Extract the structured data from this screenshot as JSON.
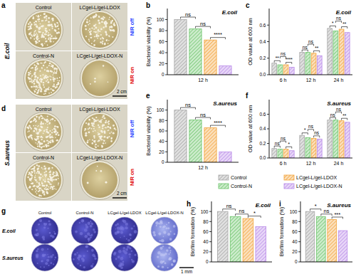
{
  "panel_labels": [
    "a",
    "b",
    "c",
    "d",
    "e",
    "f",
    "g",
    "h",
    "i"
  ],
  "shared_legend": [
    {
      "name": "Control",
      "color": "#a6a6a6"
    },
    {
      "name": "Control-N",
      "color": "#6cc46a"
    },
    {
      "name": "LCgel-L/gel-LDOX",
      "color": "#f2a33a"
    },
    {
      "name": "LCgel-L/gel-LDOX-N",
      "color": "#b98ae8"
    }
  ],
  "photo_panels": [
    {
      "species": "E.coil",
      "conditions": [
        {
          "state": "NIR off",
          "samples": [
            "Control",
            "LCgel-L/gel-LDOX"
          ]
        },
        {
          "state": "NIR on",
          "samples": [
            "Control-N",
            "LCgel-L/gel-LDOX-N"
          ]
        }
      ],
      "scale_bar": "2 cm"
    },
    {
      "species": "S.aureus",
      "conditions": [
        {
          "state": "NIR off",
          "samples": [
            "Control",
            "LCgel-L/gel-LDOX"
          ]
        },
        {
          "state": "NIR on",
          "samples": [
            "Control-N",
            "LCgel-L/gel-LDOX-N"
          ]
        }
      ],
      "scale_bar": "2 cm"
    }
  ],
  "biofilm_images": {
    "columns": [
      "Control",
      "Control-N",
      "LCgel-L/gel-LDOX",
      "LCgel-L/gel-LDOX-N"
    ],
    "rows": [
      "E.coil",
      "S.aureus"
    ],
    "scale_bar": "1 mm"
  },
  "chart_data": [
    {
      "type": "bar",
      "title": "E.coil",
      "y_label": "Bacterial viability (%)",
      "categories": [
        "12 h"
      ],
      "series": [
        {
          "values": [
            100
          ]
        },
        {
          "values": [
            83
          ]
        },
        {
          "values": [
            63
          ]
        },
        {
          "values": [
            16
          ]
        }
      ],
      "annotations": [
        [
          "ns",
          "ns",
          "****"
        ]
      ],
      "ylim": [
        0,
        120
      ],
      "yticks": [
        0,
        20,
        40,
        60,
        80,
        100
      ]
    },
    {
      "type": "bar",
      "title": "E.coil",
      "y_label": "OD value at 600 nm",
      "categories": [
        "6 h",
        "12 h",
        "24 h"
      ],
      "series": [
        {
          "values": [
            0.14,
            0.27,
            0.56
          ]
        },
        {
          "values": [
            0.12,
            0.27,
            0.53
          ]
        },
        {
          "values": [
            0.12,
            0.26,
            0.55
          ]
        },
        {
          "values": [
            0.09,
            0.23,
            0.51
          ]
        }
      ],
      "annotations": [
        [
          "**",
          "ns",
          "****"
        ],
        [
          "ns",
          "ns",
          "**"
        ],
        [
          "*",
          "ns",
          "**"
        ]
      ],
      "ylim": [
        0,
        0.8
      ],
      "yticks": [
        {
          "value": 0,
          "label": "0.0"
        },
        0.2,
        0.4,
        0.6
      ]
    },
    {
      "type": "bar",
      "title": "S.aureus",
      "y_label": "Bacterial viability (%)",
      "categories": [
        "12 h"
      ],
      "series": [
        {
          "values": [
            100
          ]
        },
        {
          "values": [
            81
          ]
        },
        {
          "values": [
            66
          ]
        },
        {
          "values": [
            20
          ]
        }
      ],
      "annotations": [
        [
          "ns",
          "ns",
          "****"
        ]
      ],
      "ylim": [
        0,
        120
      ],
      "yticks": [
        0,
        20,
        40,
        60,
        80,
        100
      ]
    },
    {
      "type": "bar",
      "title": "S.aureus",
      "y_label": "OD value at 600 nm",
      "categories": [
        "6 h",
        "12 h",
        "24 h"
      ],
      "series": [
        {
          "values": [
            0.13,
            0.31,
            0.52
          ]
        },
        {
          "values": [
            0.12,
            0.28,
            0.52
          ]
        },
        {
          "values": [
            0.12,
            0.27,
            0.51
          ]
        },
        {
          "values": [
            0.1,
            0.26,
            0.49
          ]
        }
      ],
      "annotations": [
        [
          "ns",
          "ns",
          "*"
        ],
        [
          "*",
          "ns",
          "ns"
        ],
        [
          "ns",
          "ns",
          "**"
        ]
      ],
      "ylim": [
        0,
        0.8
      ],
      "yticks": [
        {
          "value": 0,
          "label": "0.0"
        },
        0.2,
        0.4,
        0.6
      ]
    },
    {
      "type": "bar",
      "title": "E.coil",
      "y_label": "Biofilm formation (%)",
      "categories": [
        null
      ],
      "series": [
        {
          "values": [
            100
          ]
        },
        {
          "values": [
            90
          ]
        },
        {
          "values": [
            86
          ]
        },
        {
          "values": [
            70
          ]
        }
      ],
      "annotations": [
        [
          "ns",
          "ns",
          "*"
        ]
      ],
      "ylim": [
        0,
        120
      ],
      "yticks": [
        0,
        20,
        40,
        60,
        80,
        100
      ]
    },
    {
      "type": "bar",
      "title": "S.aureus",
      "y_label": "Biofilm formation (%)",
      "categories": [
        null
      ],
      "series": [
        {
          "values": [
            100
          ]
        },
        {
          "values": [
            90
          ]
        },
        {
          "values": [
            84
          ]
        },
        {
          "values": [
            62
          ]
        }
      ],
      "annotations": [
        [
          "*",
          "ns",
          "***"
        ]
      ],
      "ylim": [
        0,
        120
      ],
      "yticks": [
        0,
        20,
        40,
        60,
        80,
        100
      ]
    }
  ]
}
